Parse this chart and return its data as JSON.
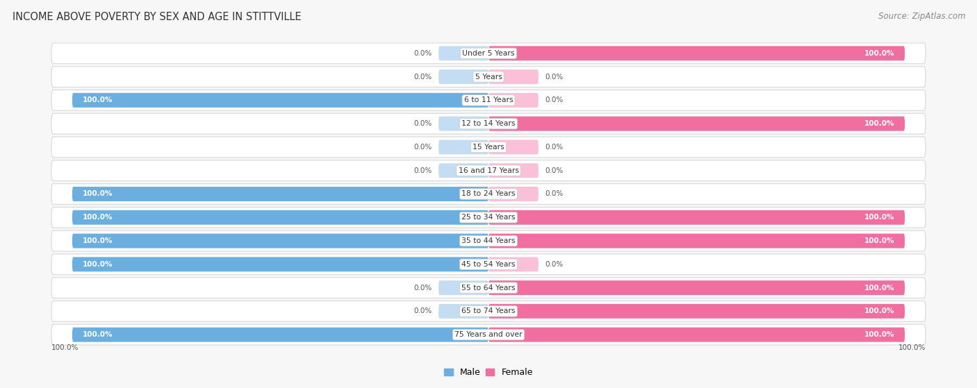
{
  "title": "INCOME ABOVE POVERTY BY SEX AND AGE IN STITTVILLE",
  "source": "Source: ZipAtlas.com",
  "categories": [
    "Under 5 Years",
    "5 Years",
    "6 to 11 Years",
    "12 to 14 Years",
    "15 Years",
    "16 and 17 Years",
    "18 to 24 Years",
    "25 to 34 Years",
    "35 to 44 Years",
    "45 to 54 Years",
    "55 to 64 Years",
    "65 to 74 Years",
    "75 Years and over"
  ],
  "male": [
    0.0,
    0.0,
    100.0,
    0.0,
    0.0,
    0.0,
    100.0,
    100.0,
    100.0,
    100.0,
    0.0,
    0.0,
    100.0
  ],
  "female": [
    100.0,
    0.0,
    0.0,
    100.0,
    0.0,
    0.0,
    0.0,
    100.0,
    100.0,
    0.0,
    100.0,
    100.0,
    100.0
  ],
  "male_color": "#6aafe0",
  "female_color": "#f06ea0",
  "male_color_light": "#c5ddf2",
  "female_color_light": "#f9c0d8",
  "row_bg_color": "#f0f0f0",
  "row_border_color": "#d8d8d8",
  "bg_color": "#f7f7f7",
  "label_color": "#555555",
  "white_label_color": "#ffffff",
  "max_val": 100.0,
  "stub_size": 12.0
}
